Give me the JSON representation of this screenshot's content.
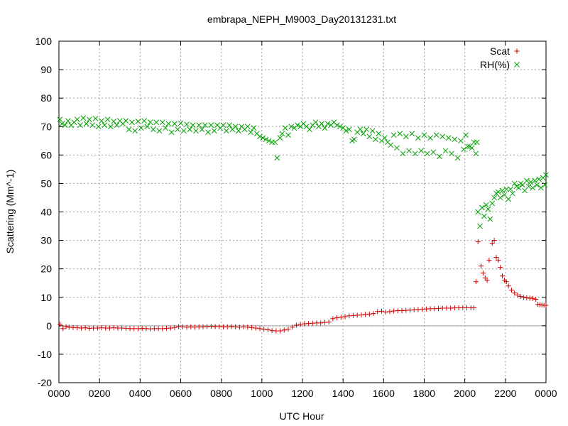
{
  "chart_data": {
    "type": "scatter",
    "title": "embrapa_NEPH_M9003_Day20131231.txt",
    "xlabel": "UTC Hour",
    "ylabel": "Scattering (Mm^-1)",
    "xlim": [
      0,
      24
    ],
    "ylim": [
      -20,
      100
    ],
    "x_tick_labels": [
      "0000",
      "0200",
      "0400",
      "0600",
      "0800",
      "1000",
      "1200",
      "1400",
      "1600",
      "1800",
      "2000",
      "2200",
      "0000"
    ],
    "y_ticks": [
      -20,
      -10,
      0,
      10,
      20,
      30,
      40,
      50,
      60,
      70,
      80,
      90,
      100
    ],
    "grid": true,
    "zero_line": true,
    "legend_position": "top-right",
    "series": [
      {
        "name": "Scat",
        "color": "#cc0000",
        "marker": "plus",
        "points": [
          [
            0.05,
            0.5
          ],
          [
            0.2,
            -1.0
          ],
          [
            0.35,
            -0.3
          ],
          [
            0.5,
            -0.5
          ],
          [
            0.7,
            -0.6
          ],
          [
            0.9,
            -0.7
          ],
          [
            1.1,
            -0.8
          ],
          [
            1.3,
            -0.7
          ],
          [
            1.5,
            -0.9
          ],
          [
            1.7,
            -0.8
          ],
          [
            1.9,
            -0.8
          ],
          [
            2.1,
            -0.7
          ],
          [
            2.3,
            -0.8
          ],
          [
            2.5,
            -0.8
          ],
          [
            2.7,
            -0.7
          ],
          [
            2.9,
            -0.8
          ],
          [
            3.1,
            -0.8
          ],
          [
            3.3,
            -0.9
          ],
          [
            3.5,
            -1.0
          ],
          [
            3.7,
            -1.0
          ],
          [
            3.9,
            -1.0
          ],
          [
            4.1,
            -0.9
          ],
          [
            4.3,
            -1.0
          ],
          [
            4.5,
            -1.1
          ],
          [
            4.7,
            -1.0
          ],
          [
            4.9,
            -1.0
          ],
          [
            5.1,
            -1.0
          ],
          [
            5.3,
            -0.9
          ],
          [
            5.5,
            -0.8
          ],
          [
            5.7,
            -0.6
          ],
          [
            5.9,
            -0.3
          ],
          [
            6.1,
            -0.4
          ],
          [
            6.3,
            -0.5
          ],
          [
            6.5,
            -0.4
          ],
          [
            6.7,
            -0.5
          ],
          [
            6.9,
            -0.4
          ],
          [
            7.1,
            -0.4
          ],
          [
            7.3,
            -0.3
          ],
          [
            7.5,
            -0.2
          ],
          [
            7.7,
            -0.3
          ],
          [
            7.9,
            -0.3
          ],
          [
            8.1,
            -0.4
          ],
          [
            8.3,
            -0.4
          ],
          [
            8.5,
            -0.3
          ],
          [
            8.7,
            -0.4
          ],
          [
            8.9,
            -0.5
          ],
          [
            9.1,
            -0.4
          ],
          [
            9.3,
            -0.5
          ],
          [
            9.5,
            -0.6
          ],
          [
            9.7,
            -0.8
          ],
          [
            9.9,
            -1.0
          ],
          [
            10.1,
            -1.2
          ],
          [
            10.3,
            -1.4
          ],
          [
            10.5,
            -1.7
          ],
          [
            10.7,
            -1.8
          ],
          [
            10.9,
            -1.8
          ],
          [
            11.1,
            -1.5
          ],
          [
            11.3,
            -1.2
          ],
          [
            11.5,
            -0.5
          ],
          [
            11.7,
            0.2
          ],
          [
            11.9,
            0.5
          ],
          [
            12.1,
            0.7
          ],
          [
            12.3,
            0.8
          ],
          [
            12.5,
            0.9
          ],
          [
            12.7,
            1.0
          ],
          [
            12.9,
            1.0
          ],
          [
            13.1,
            1.2
          ],
          [
            13.3,
            1.3
          ],
          [
            13.5,
            2.5
          ],
          [
            13.7,
            2.8
          ],
          [
            13.9,
            3.0
          ],
          [
            14.1,
            3.2
          ],
          [
            14.3,
            3.5
          ],
          [
            14.5,
            3.6
          ],
          [
            14.7,
            3.7
          ],
          [
            14.9,
            3.8
          ],
          [
            15.1,
            4.0
          ],
          [
            15.3,
            4.1
          ],
          [
            15.5,
            4.3
          ],
          [
            15.7,
            5.0
          ],
          [
            15.9,
            5.1
          ],
          [
            16.1,
            4.8
          ],
          [
            16.3,
            5.0
          ],
          [
            16.5,
            5.2
          ],
          [
            16.7,
            5.3
          ],
          [
            16.9,
            5.3
          ],
          [
            17.1,
            5.4
          ],
          [
            17.3,
            5.5
          ],
          [
            17.5,
            5.6
          ],
          [
            17.7,
            5.7
          ],
          [
            17.9,
            5.8
          ],
          [
            18.1,
            5.9
          ],
          [
            18.3,
            6.0
          ],
          [
            18.5,
            6.0
          ],
          [
            18.7,
            6.1
          ],
          [
            18.9,
            6.2
          ],
          [
            19.1,
            6.2
          ],
          [
            19.3,
            6.2
          ],
          [
            19.5,
            6.3
          ],
          [
            19.7,
            6.3
          ],
          [
            19.9,
            6.4
          ],
          [
            20.1,
            6.4
          ],
          [
            20.3,
            6.3
          ],
          [
            20.45,
            6.3
          ],
          [
            20.55,
            15.5
          ],
          [
            20.65,
            29.5
          ],
          [
            20.8,
            21.0
          ],
          [
            20.9,
            18.5
          ],
          [
            21.0,
            16.8
          ],
          [
            21.1,
            16.0
          ],
          [
            21.2,
            23.0
          ],
          [
            21.35,
            29.0
          ],
          [
            21.45,
            30.0
          ],
          [
            21.55,
            24.0
          ],
          [
            21.65,
            23.0
          ],
          [
            21.75,
            20.5
          ],
          [
            21.85,
            17.5
          ],
          [
            21.95,
            16.0
          ],
          [
            22.05,
            15.5
          ],
          [
            22.15,
            14.0
          ],
          [
            22.3,
            12.5
          ],
          [
            22.45,
            11.5
          ],
          [
            22.6,
            10.8
          ],
          [
            22.75,
            10.3
          ],
          [
            22.9,
            10.0
          ],
          [
            23.05,
            9.8
          ],
          [
            23.2,
            9.7
          ],
          [
            23.35,
            9.6
          ],
          [
            23.5,
            9.3
          ],
          [
            23.6,
            7.5
          ],
          [
            23.7,
            7.4
          ],
          [
            23.8,
            7.3
          ],
          [
            23.9,
            7.2
          ],
          [
            24.0,
            7.2
          ]
        ]
      },
      {
        "name": "RH(%)",
        "color": "#00a000",
        "marker": "cross",
        "points": [
          [
            0.05,
            72.5
          ],
          [
            0.15,
            71.0
          ],
          [
            0.3,
            70.5
          ],
          [
            0.45,
            72.0
          ],
          [
            0.6,
            70.5
          ],
          [
            0.75,
            71.5
          ],
          [
            0.9,
            72.5
          ],
          [
            1.05,
            70.5
          ],
          [
            1.2,
            73.0
          ],
          [
            1.35,
            71.0
          ],
          [
            1.5,
            72.5
          ],
          [
            1.65,
            70.5
          ],
          [
            1.8,
            72.8
          ],
          [
            1.95,
            70.0
          ],
          [
            2.1,
            72.0
          ],
          [
            2.25,
            70.5
          ],
          [
            2.4,
            72.5
          ],
          [
            2.55,
            70.0
          ],
          [
            2.7,
            71.8
          ],
          [
            2.85,
            70.5
          ],
          [
            3.0,
            72.0
          ],
          [
            3.15,
            71.0
          ],
          [
            3.3,
            72.0
          ],
          [
            3.45,
            69.0
          ],
          [
            3.6,
            71.5
          ],
          [
            3.75,
            68.5
          ],
          [
            3.9,
            71.8
          ],
          [
            4.05,
            69.5
          ],
          [
            4.2,
            72.0
          ],
          [
            4.35,
            70.0
          ],
          [
            4.5,
            71.5
          ],
          [
            4.65,
            69.0
          ],
          [
            4.8,
            71.5
          ],
          [
            4.95,
            68.5
          ],
          [
            5.1,
            71.5
          ],
          [
            5.25,
            69.5
          ],
          [
            5.4,
            71.0
          ],
          [
            5.55,
            68.0
          ],
          [
            5.7,
            71.0
          ],
          [
            5.85,
            69.0
          ],
          [
            6.0,
            71.2
          ],
          [
            6.15,
            68.5
          ],
          [
            6.3,
            70.8
          ],
          [
            6.45,
            69.0
          ],
          [
            6.6,
            70.5
          ],
          [
            6.75,
            68.5
          ],
          [
            6.9,
            70.5
          ],
          [
            7.05,
            69.0
          ],
          [
            7.2,
            70.5
          ],
          [
            7.35,
            68.0
          ],
          [
            7.5,
            70.5
          ],
          [
            7.65,
            68.5
          ],
          [
            7.8,
            70.5
          ],
          [
            7.95,
            69.5
          ],
          [
            8.1,
            70.5
          ],
          [
            8.25,
            68.5
          ],
          [
            8.4,
            70.5
          ],
          [
            8.55,
            69.0
          ],
          [
            8.7,
            70.0
          ],
          [
            8.85,
            68.5
          ],
          [
            9.0,
            70.0
          ],
          [
            9.15,
            69.0
          ],
          [
            9.3,
            70.0
          ],
          [
            9.45,
            68.0
          ],
          [
            9.6,
            69.5
          ],
          [
            9.75,
            67.5
          ],
          [
            9.9,
            66.5
          ],
          [
            10.05,
            66.0
          ],
          [
            10.2,
            65.5
          ],
          [
            10.35,
            65.0
          ],
          [
            10.5,
            64.5
          ],
          [
            10.65,
            64.5
          ],
          [
            10.75,
            59.0
          ],
          [
            10.9,
            66.0
          ],
          [
            11.0,
            67.5
          ],
          [
            11.15,
            69.5
          ],
          [
            11.3,
            67.0
          ],
          [
            11.45,
            70.0
          ],
          [
            11.6,
            69.5
          ],
          [
            11.75,
            70.5
          ],
          [
            11.9,
            70.0
          ],
          [
            12.05,
            71.0
          ],
          [
            12.2,
            70.0
          ],
          [
            12.35,
            69.0
          ],
          [
            12.5,
            70.5
          ],
          [
            12.65,
            71.5
          ],
          [
            12.8,
            70.0
          ],
          [
            12.95,
            71.0
          ],
          [
            13.1,
            69.5
          ],
          [
            13.25,
            71.0
          ],
          [
            13.4,
            70.5
          ],
          [
            13.55,
            71.5
          ],
          [
            13.7,
            70.5
          ],
          [
            13.85,
            70.0
          ],
          [
            14.0,
            69.5
          ],
          [
            14.15,
            68.5
          ],
          [
            14.3,
            69.0
          ],
          [
            14.45,
            65.0
          ],
          [
            14.55,
            65.5
          ],
          [
            14.7,
            68.0
          ],
          [
            14.85,
            69.0
          ],
          [
            15.0,
            67.5
          ],
          [
            15.15,
            69.0
          ],
          [
            15.3,
            66.5
          ],
          [
            15.45,
            68.5
          ],
          [
            15.6,
            65.5
          ],
          [
            15.75,
            67.5
          ],
          [
            15.9,
            65.0
          ],
          [
            16.05,
            66.0
          ],
          [
            16.2,
            64.5
          ],
          [
            16.35,
            63.5
          ],
          [
            16.5,
            67.0
          ],
          [
            16.65,
            62.5
          ],
          [
            16.8,
            67.5
          ],
          [
            16.95,
            60.5
          ],
          [
            17.1,
            66.5
          ],
          [
            17.25,
            61.5
          ],
          [
            17.4,
            67.5
          ],
          [
            17.55,
            60.5
          ],
          [
            17.7,
            66.0
          ],
          [
            17.85,
            61.5
          ],
          [
            18.0,
            67.0
          ],
          [
            18.15,
            60.5
          ],
          [
            18.3,
            66.0
          ],
          [
            18.45,
            61.0
          ],
          [
            18.6,
            67.0
          ],
          [
            18.75,
            59.5
          ],
          [
            18.9,
            66.5
          ],
          [
            19.05,
            61.5
          ],
          [
            19.2,
            66.0
          ],
          [
            19.35,
            60.5
          ],
          [
            19.5,
            65.5
          ],
          [
            19.65,
            59.0
          ],
          [
            19.8,
            65.0
          ],
          [
            19.95,
            62.0
          ],
          [
            20.05,
            67.0
          ],
          [
            20.15,
            63.0
          ],
          [
            20.25,
            63.0
          ],
          [
            20.35,
            62.5
          ],
          [
            20.45,
            64.5
          ],
          [
            20.55,
            60.5
          ],
          [
            20.6,
            64.5
          ],
          [
            20.65,
            40.0
          ],
          [
            20.75,
            35.0
          ],
          [
            20.85,
            41.5
          ],
          [
            20.95,
            38.5
          ],
          [
            21.05,
            42.5
          ],
          [
            21.15,
            41.0
          ],
          [
            21.25,
            37.5
          ],
          [
            21.35,
            43.0
          ],
          [
            21.45,
            45.0
          ],
          [
            21.55,
            46.5
          ],
          [
            21.65,
            47.0
          ],
          [
            21.75,
            45.0
          ],
          [
            21.85,
            47.5
          ],
          [
            21.95,
            46.0
          ],
          [
            22.05,
            48.0
          ],
          [
            22.15,
            44.5
          ],
          [
            22.25,
            48.0
          ],
          [
            22.35,
            46.5
          ],
          [
            22.45,
            50.0
          ],
          [
            22.55,
            49.0
          ],
          [
            22.65,
            48.5
          ],
          [
            22.75,
            50.0
          ],
          [
            22.85,
            49.5
          ],
          [
            22.95,
            47.5
          ],
          [
            23.05,
            51.0
          ],
          [
            23.15,
            49.0
          ],
          [
            23.25,
            50.5
          ],
          [
            23.35,
            48.5
          ],
          [
            23.45,
            51.0
          ],
          [
            23.55,
            49.5
          ],
          [
            23.65,
            51.5
          ],
          [
            23.75,
            48.5
          ],
          [
            23.85,
            52.0
          ],
          [
            23.95,
            49.5
          ],
          [
            24.0,
            53.0
          ]
        ]
      }
    ]
  }
}
